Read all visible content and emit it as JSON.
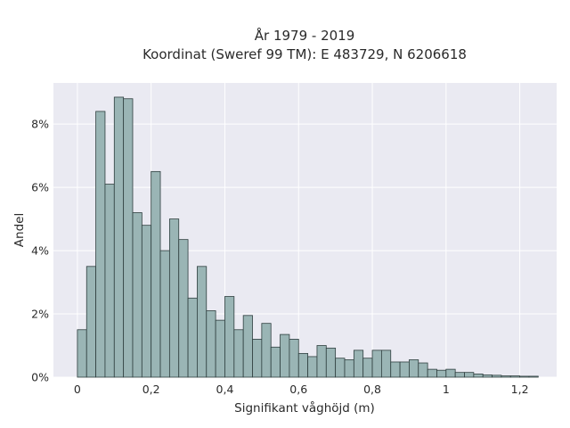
{
  "chart_data": {
    "type": "bar",
    "title_line1": "År 1979 - 2019",
    "title_line2": "Koordinat (Sweref 99 TM): E 483729, N 6206618",
    "xlabel": "Signifikant våghöjd (m)",
    "ylabel": "Andel",
    "xlim": [
      -0.065,
      1.3
    ],
    "ylim": [
      0,
      9.3
    ],
    "bin_width": 0.025,
    "bin_start": 0.0,
    "x_ticks": [
      {
        "value": 0,
        "label": "0"
      },
      {
        "value": 0.2,
        "label": "0,2"
      },
      {
        "value": 0.4,
        "label": "0,4"
      },
      {
        "value": 0.6,
        "label": "0,6"
      },
      {
        "value": 0.8,
        "label": "0,8"
      },
      {
        "value": 1.0,
        "label": "1"
      },
      {
        "value": 1.2,
        "label": "1,2"
      }
    ],
    "y_ticks": [
      {
        "value": 0,
        "label": "0%"
      },
      {
        "value": 2,
        "label": "2%"
      },
      {
        "value": 4,
        "label": "4%"
      },
      {
        "value": 6,
        "label": "6%"
      },
      {
        "value": 8,
        "label": "8%"
      }
    ],
    "values": [
      1.5,
      3.5,
      8.4,
      6.1,
      8.85,
      8.8,
      5.2,
      4.8,
      6.5,
      4.0,
      5.0,
      4.35,
      2.5,
      3.5,
      2.1,
      1.8,
      2.55,
      1.5,
      1.95,
      1.2,
      1.7,
      0.95,
      1.35,
      1.2,
      0.75,
      0.65,
      1.0,
      0.92,
      0.6,
      0.55,
      0.85,
      0.6,
      0.85,
      0.85,
      0.48,
      0.48,
      0.55,
      0.45,
      0.25,
      0.22,
      0.25,
      0.15,
      0.15,
      0.1,
      0.07,
      0.06,
      0.04,
      0.04,
      0.03,
      0.03
    ],
    "colors": {
      "bar_fill": "#9ab5b5",
      "bar_edge": "#2f3f3f",
      "plot_bg": "#eaeaf2",
      "grid": "#ffffff"
    },
    "grid": true
  }
}
